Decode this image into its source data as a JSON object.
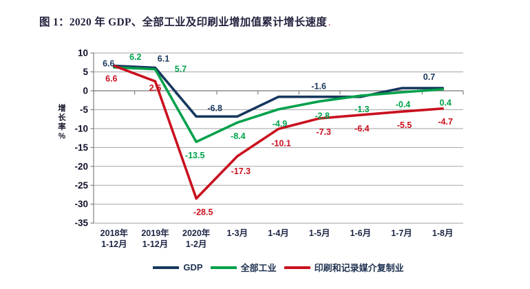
{
  "title": {
    "text": "图 1：2020 年 GDP、全部工业及印刷业增加值累计增长速度",
    "trailing_mark": "."
  },
  "chart_data": {
    "type": "line",
    "title": "图 1：2020 年 GDP、全部工业及印刷业增加值累计增长速度",
    "ylabel": "增长率%",
    "ylim": [
      -35,
      10
    ],
    "ytick_step": 5,
    "yticks": [
      10,
      5,
      0,
      -5,
      -10,
      -15,
      -20,
      -25,
      -30,
      -35
    ],
    "grid": true,
    "grid_color": "#a3a3a3",
    "axis_color": "#808080",
    "legend_position": "bottom",
    "categories": [
      "2018年\n1-12月",
      "2019年\n1-12月",
      "2020年\n1-2月",
      "1-3月",
      "1-4月",
      "1-5月",
      "1-6月",
      "1-7月",
      "1-8月"
    ],
    "series": [
      {
        "name": "GDP",
        "color": "#17375E",
        "values": [
          6.6,
          6.1,
          -6.8,
          -6.8,
          -1.6,
          -1.6,
          -1.6,
          0.7,
          0.7
        ],
        "point_labels": [
          {
            "index": 0,
            "text": "6.6",
            "dx": -8,
            "dy": -3
          },
          {
            "index": 1,
            "text": "6.1",
            "dx": 12,
            "dy": -13
          },
          {
            "index": 2,
            "text": "-6.8",
            "dx": 27,
            "dy": -12
          },
          {
            "index": 5,
            "text": "-1.6",
            "dx": -1,
            "dy": -15
          },
          {
            "index": 7,
            "text": "0.7",
            "dx": 40,
            "dy": -16
          }
        ]
      },
      {
        "name": "全部工业",
        "color": "#00A14B",
        "values": [
          6.2,
          5.7,
          -13.5,
          -8.4,
          -4.9,
          -2.8,
          -1.3,
          -0.4,
          0.4
        ],
        "point_labels": [
          {
            "index": 0,
            "text": "6.2",
            "dx": 31,
            "dy": -15
          },
          {
            "index": 1,
            "text": "5.7",
            "dx": 37,
            "dy": 0
          },
          {
            "index": 2,
            "text": "-13.5",
            "dx": -2,
            "dy": 20
          },
          {
            "index": 3,
            "text": "-8.4",
            "dx": 1,
            "dy": 20
          },
          {
            "index": 4,
            "text": "-4.9",
            "dx": 2,
            "dy": 21
          },
          {
            "index": 5,
            "text": "-2.8",
            "dx": 4,
            "dy": 21
          },
          {
            "index": 6,
            "text": "-1.3",
            "dx": 2,
            "dy": 20
          },
          {
            "index": 7,
            "text": "-0.4",
            "dx": 2,
            "dy": 18
          },
          {
            "index": 8,
            "text": "0.4",
            "dx": 4,
            "dy": 20
          }
        ]
      },
      {
        "name": "印刷和记录媒介复制业",
        "color": "#C9101E",
        "values": [
          6.6,
          2.5,
          -28.5,
          -17.3,
          -10.1,
          -7.3,
          -6.4,
          -5.5,
          -4.7
        ],
        "point_labels": [
          {
            "index": 0,
            "text": "6.6",
            "dx": -4,
            "dy": 19
          },
          {
            "index": 1,
            "text": "2.5",
            "dx": 0,
            "dy": 10
          },
          {
            "index": 2,
            "text": "-28.5",
            "dx": 10,
            "dy": 20
          },
          {
            "index": 3,
            "text": "-17.3",
            "dx": 5,
            "dy": 22
          },
          {
            "index": 4,
            "text": "-10.1",
            "dx": 4,
            "dy": 21
          },
          {
            "index": 5,
            "text": "-7.3",
            "dx": 6,
            "dy": 20
          },
          {
            "index": 6,
            "text": "-6.4",
            "dx": 2,
            "dy": 20
          },
          {
            "index": 7,
            "text": "-5.5",
            "dx": 4,
            "dy": 20
          },
          {
            "index": 8,
            "text": "-4.7",
            "dx": 4,
            "dy": 19
          }
        ]
      }
    ]
  },
  "legend": {
    "items": [
      {
        "label": "GDP",
        "color": "#17375E"
      },
      {
        "label": "全部工业",
        "color": "#00A14B"
      },
      {
        "label": "印刷和记录媒介复制业",
        "color": "#C9101E"
      }
    ]
  }
}
